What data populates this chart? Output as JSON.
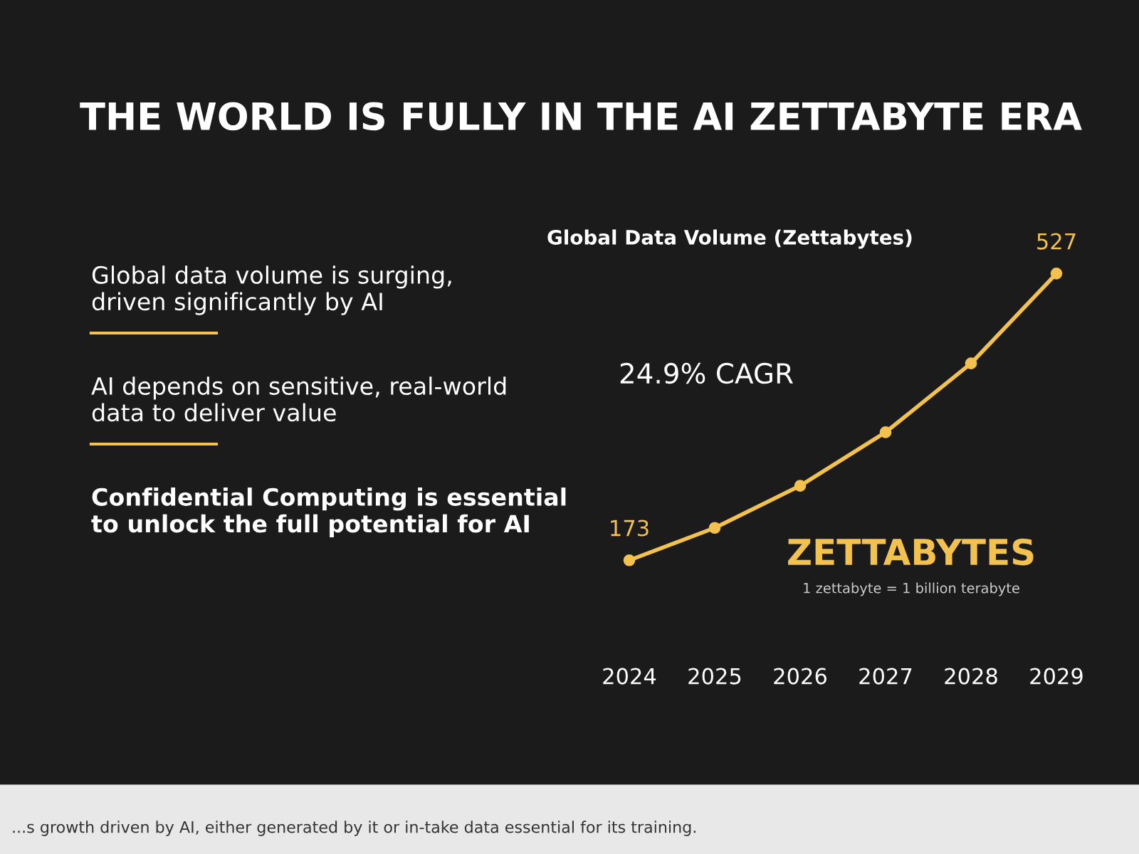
{
  "chart_data": {
    "type": "line",
    "title": "THE WORLD IS FULLY IN THE AI ZETTABYTE ERA",
    "subtitle": "Global Data Volume (Zettabytes)",
    "categories": [
      "2024",
      "2025",
      "2026",
      "2027",
      "2028",
      "2029"
    ],
    "series": [
      {
        "color": "#f2c14e",
        "values": [
          173,
          213,
          265,
          331,
          416,
          527
        ],
        "value_labels": [
          "173",
          null,
          null,
          null,
          null,
          "527"
        ]
      }
    ],
    "marker": "circle",
    "line_style": "solid",
    "grid": false,
    "legend": false,
    "annotations": [
      "Global data volume is surging,\ndriven significantly by AI",
      "AI depends on sensitive, real-world\ndata to deliver value",
      "Confidential Computing is essential\nto unlock the full potential for AI",
      "24.9% CAGR",
      "ZETTABYTES",
      "1 zettabyte = 1 billion terabyte",
      "...s growth driven by AI, either generated by it or in-take data essential for its training."
    ]
  }
}
